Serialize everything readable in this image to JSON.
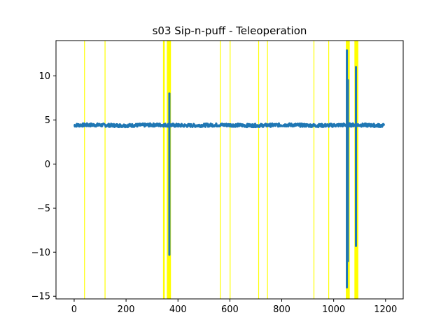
{
  "chart_data": {
    "type": "line",
    "title": "s03 Sip-n-puff - Teleoperation",
    "xlabel": "",
    "ylabel": "",
    "xlim": [
      -70,
      1268
    ],
    "ylim": [
      -15.3,
      14.0
    ],
    "x_ticks": [
      0,
      200,
      400,
      600,
      800,
      1000,
      1200
    ],
    "y_ticks": [
      -15,
      -10,
      -5,
      0,
      5,
      10
    ],
    "grid": false,
    "legend": "none",
    "series_color": "#1f77b4",
    "highlight_color": "#ffff00",
    "series": [
      {
        "baseline": 4.4,
        "noise": 0.18,
        "x_range": [
          0,
          1195
        ],
        "spikes": [
          {
            "x": 367,
            "min": -10.3,
            "max": 8.0
          },
          {
            "x": 1051,
            "min": -14.0,
            "max": 12.9
          },
          {
            "x": 1055,
            "min": -11.0,
            "max": 9.5
          },
          {
            "x": 1086,
            "min": -9.3,
            "max": 11.0
          }
        ]
      }
    ],
    "highlight_lines": [
      40,
      119,
      344,
      563,
      601,
      711,
      745,
      924,
      981
    ],
    "highlight_bands": [
      [
        343,
        349
      ],
      [
        357,
        373
      ],
      [
        1047,
        1062
      ],
      [
        1080,
        1095
      ]
    ]
  }
}
